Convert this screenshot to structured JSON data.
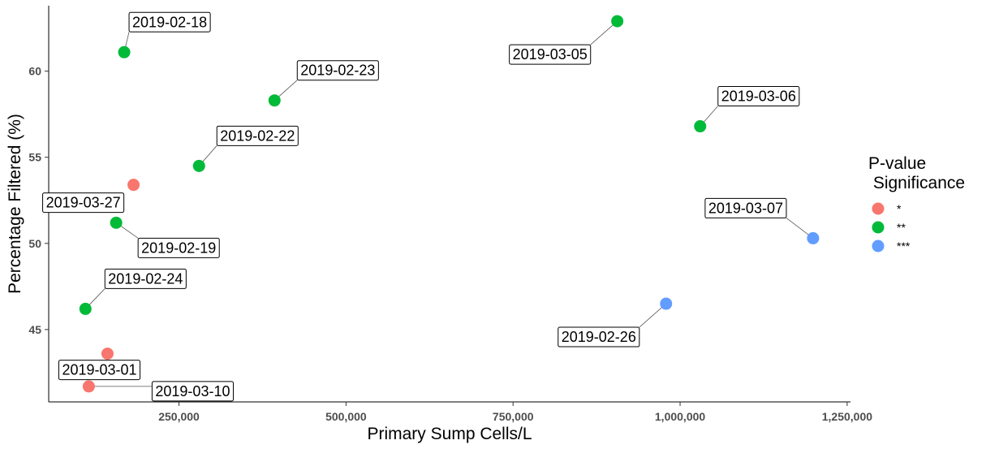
{
  "chart_data": {
    "type": "scatter",
    "xlabel": "Primary Sump Cells/L",
    "ylabel": "Percentage Filtered (%)",
    "xlim": [
      55000,
      1255000
    ],
    "ylim": [
      40.8,
      63.8
    ],
    "x_ticks": [
      250000,
      500000,
      750000,
      1000000,
      1250000
    ],
    "x_tick_labels": [
      "250,000",
      "500,000",
      "750,000",
      "1,000,000",
      "1,250,000"
    ],
    "y_ticks": [
      45,
      50,
      55,
      60
    ],
    "y_tick_labels": [
      "45",
      "50",
      "55",
      "60"
    ],
    "grid": false,
    "legend": {
      "title_line1": "P-value",
      "title_line2": " Significance",
      "placement": "right",
      "items": [
        {
          "key": "*",
          "color": "#F8766D"
        },
        {
          "key": "**",
          "color": "#00BA38"
        },
        {
          "key": "***",
          "color": "#619CFF"
        }
      ]
    },
    "points": [
      {
        "x": 168000,
        "y": 61.1,
        "sig": "**",
        "label": "2019-02-18"
      },
      {
        "x": 393000,
        "y": 58.3,
        "sig": "**",
        "label": "2019-02-23"
      },
      {
        "x": 906000,
        "y": 62.9,
        "sig": "**",
        "label": "2019-03-05"
      },
      {
        "x": 1030000,
        "y": 56.8,
        "sig": "**",
        "label": "2019-03-06"
      },
      {
        "x": 280000,
        "y": 54.5,
        "sig": "**",
        "label": "2019-02-22"
      },
      {
        "x": 182000,
        "y": 53.4,
        "sig": "*",
        "label": ""
      },
      {
        "x": 156000,
        "y": 51.2,
        "sig": "**",
        "label": "2019-02-19"
      },
      {
        "x": 1199000,
        "y": 50.3,
        "sig": "***",
        "label": "2019-03-07"
      },
      {
        "x": 110000,
        "y": 46.2,
        "sig": "**",
        "label": "2019-02-24"
      },
      {
        "x": 979000,
        "y": 46.5,
        "sig": "***",
        "label": "2019-02-26"
      },
      {
        "x": 143000,
        "y": 43.6,
        "sig": "*",
        "label": ""
      },
      {
        "x": 115000,
        "y": 41.7,
        "sig": "*",
        "label": "2019-03-10"
      }
    ],
    "free_labels": [
      {
        "text": "2019-03-27",
        "near_point": 5
      },
      {
        "text": "2019-03-01",
        "near_point": 10
      }
    ]
  }
}
